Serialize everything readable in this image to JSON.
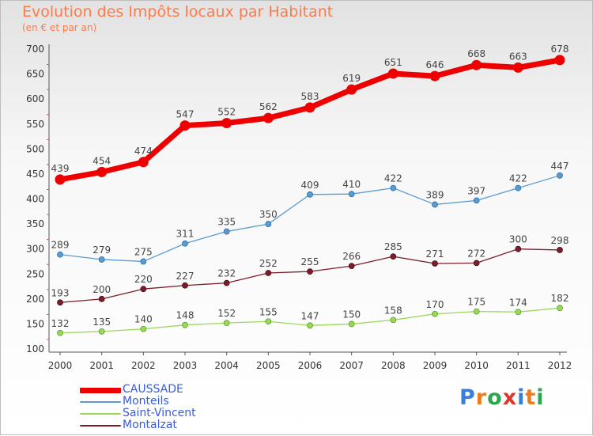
{
  "header": {
    "title": "Evolution des Impôts locaux par Habitant",
    "subtitle": "(en € et par an)"
  },
  "logo": {
    "text": "Proxiti",
    "colors": [
      "#3a7fd6",
      "#f07a1a",
      "#2da44e",
      "#e0352a",
      "#3a7fd6",
      "#f07a1a",
      "#2da44e"
    ]
  },
  "chart_data": {
    "type": "line",
    "title": "Evolution des Impôts locaux par Habitant",
    "subtitle": "(en € et par an)",
    "x": [
      "2000",
      "2001",
      "2002",
      "2003",
      "2004",
      "2005",
      "2006",
      "2007",
      "2008",
      "2009",
      "2010",
      "2011",
      "2012"
    ],
    "ylim": [
      100,
      700
    ],
    "yticks": [
      100,
      150,
      200,
      250,
      300,
      350,
      400,
      450,
      500,
      550,
      600,
      650,
      700
    ],
    "grid": false,
    "legend_position": "bottom-left",
    "series": [
      {
        "name": "CAUSSADE",
        "color": "#ee0000",
        "values": [
          439,
          454,
          474,
          547,
          552,
          562,
          583,
          619,
          651,
          646,
          668,
          663,
          678
        ]
      },
      {
        "name": "Monteils",
        "color": "#5b9bd0",
        "values": [
          289,
          279,
          275,
          311,
          335,
          350,
          409,
          410,
          422,
          389,
          397,
          422,
          447
        ]
      },
      {
        "name": "Saint-Vincent",
        "color": "#9ad85a",
        "values": [
          132,
          135,
          140,
          148,
          152,
          155,
          147,
          150,
          158,
          170,
          175,
          174,
          182
        ]
      },
      {
        "name": "Montalzat",
        "color": "#7a1e2a",
        "values": [
          193,
          200,
          220,
          227,
          232,
          252,
          255,
          266,
          285,
          271,
          272,
          300,
          298
        ]
      }
    ]
  }
}
